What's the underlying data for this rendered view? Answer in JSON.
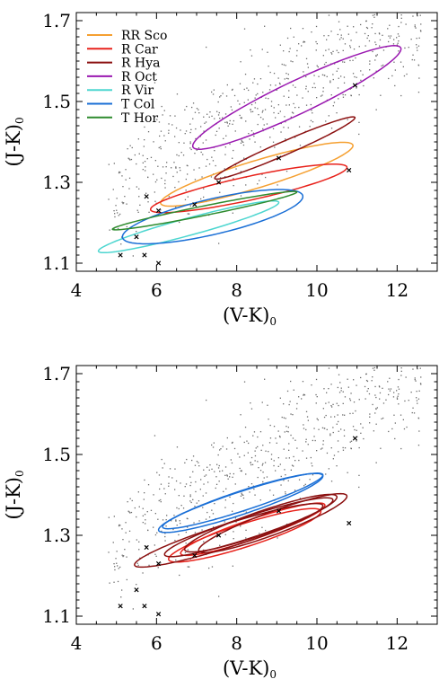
{
  "chart_data": [
    {
      "type": "scatter",
      "xlabel": "(V-K)",
      "xlabel_sub": "0",
      "ylabel": "(J-K)",
      "ylabel_sub": "0",
      "xlim": [
        4,
        13
      ],
      "ylim": [
        1.08,
        1.72
      ],
      "xticks": [
        4,
        6,
        8,
        10,
        12
      ],
      "yticks": [
        1.1,
        1.3,
        1.5,
        1.7
      ],
      "yticklabels": [
        "1.1",
        "1.3",
        "1.5",
        "1.7"
      ],
      "legend_position": "top-left",
      "series": [
        {
          "name": "RR Sco",
          "color": "#f5a031",
          "ellipses": [
            {
              "cx": 8.5,
              "cy": 1.32,
              "a": 2.4,
              "b": 0.035,
              "angle": 0.0295
            }
          ]
        },
        {
          "name": "R Car",
          "color": "#e8221b",
          "ellipses": [
            {
              "cx": 8.3,
              "cy": 1.285,
              "a": 2.45,
              "b": 0.03,
              "angle": 0.0212
            }
          ]
        },
        {
          "name": "R Hya",
          "color": "#8b1010",
          "ellipses": [
            {
              "cx": 9.2,
              "cy": 1.385,
              "a": 1.75,
              "b": 0.018,
              "angle": 0.0428
            }
          ]
        },
        {
          "name": "R Oct",
          "color": "#9a18b0",
          "ellipses": [
            {
              "cx": 9.5,
              "cy": 1.51,
              "a": 2.6,
              "b": 0.045,
              "angle": 0.0462
            }
          ]
        },
        {
          "name": "R Vir",
          "color": "#4dd6d0",
          "ellipses": [
            {
              "cx": 6.8,
              "cy": 1.19,
              "a": 2.25,
              "b": 0.022,
              "angle": 0.0267
            }
          ]
        },
        {
          "name": "T Col",
          "color": "#1a6fd6",
          "ellipses": [
            {
              "cx": 7.4,
              "cy": 1.215,
              "a": 2.25,
              "b": 0.045,
              "angle": 0.0222
            }
          ]
        },
        {
          "name": "T Hor",
          "color": "#2e8b2e",
          "ellipses": [
            {
              "cx": 7.2,
              "cy": 1.23,
              "a": 2.3,
              "b": 0.012,
              "angle": 0.02
            }
          ]
        }
      ],
      "crosses": [
        [
          5.1,
          1.12
        ],
        [
          5.7,
          1.12
        ],
        [
          6.05,
          1.1
        ],
        [
          5.5,
          1.165
        ],
        [
          5.75,
          1.265
        ],
        [
          6.05,
          1.23
        ],
        [
          6.95,
          1.245
        ],
        [
          7.55,
          1.3
        ],
        [
          9.05,
          1.36
        ],
        [
          10.8,
          1.33
        ],
        [
          10.95,
          1.54
        ]
      ]
    },
    {
      "type": "scatter",
      "xlabel": "(V-K)",
      "xlabel_sub": "0",
      "ylabel": "(J-K)",
      "ylabel_sub": "0",
      "xlim": [
        4,
        13
      ],
      "ylim": [
        1.08,
        1.72
      ],
      "xticks": [
        4,
        6,
        8,
        10,
        12
      ],
      "yticks": [
        1.1,
        1.3,
        1.5,
        1.7
      ],
      "yticklabels": [
        "1.1",
        "1.3",
        "1.5",
        "1.7"
      ],
      "series": [
        {
          "name": "",
          "color": "#1a6fd6",
          "ellipses": [
            {
              "cx": 8.1,
              "cy": 1.38,
              "a": 2.05,
              "b": 0.03,
              "angle": 0.0325
            },
            {
              "cx": 8.15,
              "cy": 1.385,
              "a": 2.0,
              "b": 0.025,
              "angle": 0.032
            }
          ]
        },
        {
          "name": "",
          "color": "#e8221b",
          "ellipses": [
            {
              "cx": 8.2,
              "cy": 1.3,
              "a": 1.9,
              "b": 0.03,
              "angle": 0.031
            },
            {
              "cx": 8.4,
              "cy": 1.315,
              "a": 1.8,
              "b": 0.026,
              "angle": 0.033
            }
          ]
        },
        {
          "name": "",
          "color": "#8b1010",
          "ellipses": [
            {
              "cx": 7.8,
              "cy": 1.3,
              "a": 2.35,
              "b": 0.03,
              "angle": 0.031
            },
            {
              "cx": 8.6,
              "cy": 1.33,
              "a": 1.9,
              "b": 0.03,
              "angle": 0.034
            },
            {
              "cx": 8.3,
              "cy": 1.32,
              "a": 2.1,
              "b": 0.028,
              "angle": 0.032
            },
            {
              "cx": 8.9,
              "cy": 1.33,
              "a": 1.85,
              "b": 0.03,
              "angle": 0.036
            }
          ]
        }
      ],
      "crosses": [
        [
          5.1,
          1.125
        ],
        [
          5.7,
          1.125
        ],
        [
          6.05,
          1.105
        ],
        [
          5.5,
          1.165
        ],
        [
          5.75,
          1.27
        ],
        [
          6.05,
          1.23
        ],
        [
          6.95,
          1.25
        ],
        [
          7.55,
          1.3
        ],
        [
          9.05,
          1.36
        ],
        [
          10.8,
          1.33
        ],
        [
          10.95,
          1.54
        ]
      ]
    }
  ]
}
